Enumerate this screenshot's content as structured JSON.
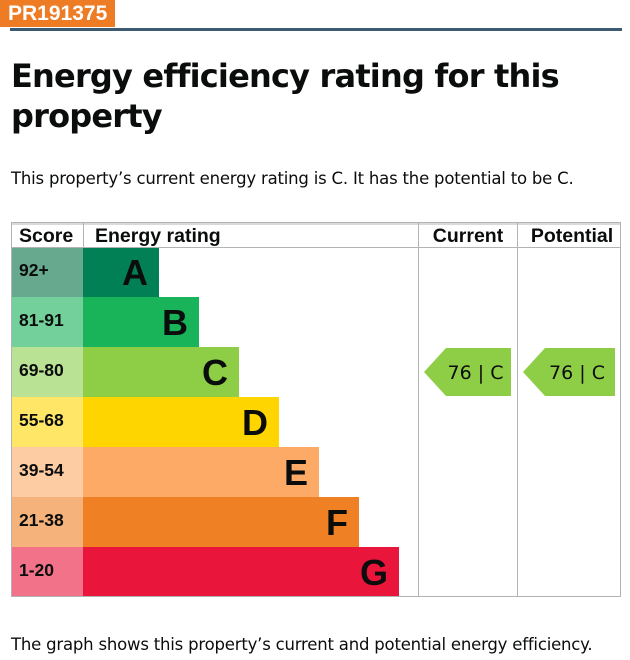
{
  "reference": "PR191375",
  "title": "Energy efficiency rating for this property",
  "summary": "This property’s current energy rating is C. It has the potential to be C.",
  "footer": "The graph shows this property’s current and potential energy efficiency.",
  "chart_data": {
    "type": "bar",
    "headers": {
      "score": "Score",
      "rating": "Energy rating",
      "current": "Current",
      "potential": "Potential"
    },
    "bands": [
      {
        "score": "92+",
        "letter": "A",
        "color": "#008054",
        "score_bg": "#66a98f"
      },
      {
        "score": "81-91",
        "letter": "B",
        "color": "#19b459",
        "score_bg": "#74d09b"
      },
      {
        "score": "69-80",
        "letter": "C",
        "color": "#8dce46",
        "score_bg": "#bae294"
      },
      {
        "score": "55-68",
        "letter": "D",
        "color": "#ffd500",
        "score_bg": "#ffe666"
      },
      {
        "score": "39-54",
        "letter": "E",
        "color": "#fcaa65",
        "score_bg": "#fdcca3"
      },
      {
        "score": "21-38",
        "letter": "F",
        "color": "#ef8023",
        "score_bg": "#f5b37b"
      },
      {
        "score": "1-20",
        "letter": "G",
        "color": "#e9153b",
        "score_bg": "#f27389"
      }
    ],
    "current": {
      "value": 76,
      "letter": "C",
      "label": "76 |  C",
      "color": "#8dce46"
    },
    "potential": {
      "value": 76,
      "letter": "C",
      "label": "76 |  C",
      "color": "#8dce46"
    }
  }
}
